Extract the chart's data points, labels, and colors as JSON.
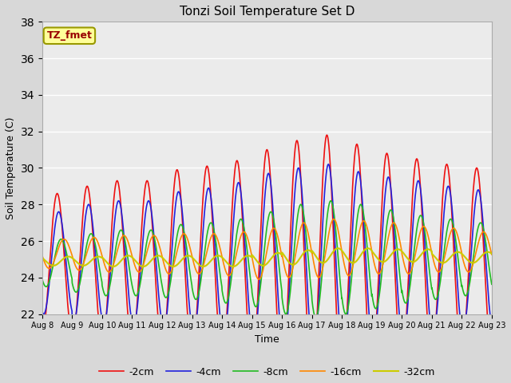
{
  "title": "Tonzi Soil Temperature Set D",
  "xlabel": "Time",
  "ylabel": "Soil Temperature (C)",
  "ylim": [
    22,
    38
  ],
  "n_days": 15,
  "points_per_day": 144,
  "base_temp": 24.8,
  "legend_labels": [
    "-2cm",
    "-4cm",
    "-8cm",
    "-16cm",
    "-32cm"
  ],
  "line_colors": [
    "#ee1111",
    "#2222dd",
    "#22bb22",
    "#ff8800",
    "#cccc00"
  ],
  "line_widths": [
    1.2,
    1.2,
    1.2,
    1.2,
    1.5
  ],
  "annotation_text": "TZ_fmet",
  "annotation_color": "#990000",
  "annotation_bg": "#ffff99",
  "annotation_border": "#999900",
  "bg_color": "#d8d8d8",
  "plot_bg": "#ebebeb",
  "xtick_labels": [
    "Aug 8",
    "Aug 9",
    "Aug 10",
    "Aug 11",
    "Aug 12",
    "Aug 13",
    "Aug 14",
    "Aug 15",
    "Aug 16",
    "Aug 17",
    "Aug 18",
    "Aug 19",
    "Aug 20",
    "Aug 21",
    "Aug 22",
    "Aug 23"
  ],
  "amplitude_2cm": [
    3.8,
    4.2,
    4.5,
    4.5,
    5.0,
    5.2,
    5.5,
    6.0,
    6.5,
    6.8,
    6.3,
    5.8,
    5.5,
    5.2,
    5.0
  ],
  "amplitude_4cm": [
    2.8,
    3.2,
    3.4,
    3.4,
    3.8,
    4.0,
    4.3,
    4.7,
    5.0,
    5.2,
    4.8,
    4.5,
    4.3,
    4.0,
    3.8
  ],
  "amplitude_8cm": [
    1.3,
    1.6,
    1.8,
    1.8,
    2.0,
    2.1,
    2.3,
    2.6,
    3.0,
    3.2,
    3.0,
    2.7,
    2.4,
    2.2,
    2.0
  ],
  "amplitude_16cm": [
    0.8,
    0.9,
    1.0,
    1.0,
    1.1,
    1.1,
    1.2,
    1.4,
    1.5,
    1.6,
    1.5,
    1.4,
    1.3,
    1.2,
    1.1
  ],
  "amplitude_32cm": [
    0.25,
    0.25,
    0.3,
    0.3,
    0.3,
    0.3,
    0.3,
    0.35,
    0.4,
    0.4,
    0.4,
    0.35,
    0.35,
    0.3,
    0.3
  ],
  "mean_2cm": [
    24.8,
    24.8,
    24.8,
    24.8,
    24.9,
    24.9,
    24.9,
    25.0,
    25.0,
    25.0,
    25.0,
    25.0,
    25.0,
    25.0,
    25.0
  ],
  "mean_4cm": [
    24.8,
    24.8,
    24.8,
    24.8,
    24.9,
    24.9,
    24.9,
    25.0,
    25.0,
    25.0,
    25.0,
    25.0,
    25.0,
    25.0,
    25.0
  ],
  "mean_8cm": [
    24.8,
    24.8,
    24.8,
    24.8,
    24.9,
    24.9,
    24.9,
    25.0,
    25.0,
    25.0,
    25.0,
    25.0,
    25.0,
    25.0,
    25.0
  ],
  "mean_16cm": [
    25.3,
    25.3,
    25.3,
    25.3,
    25.3,
    25.3,
    25.3,
    25.3,
    25.5,
    25.6,
    25.6,
    25.6,
    25.5,
    25.5,
    25.4
  ],
  "mean_32cm": [
    24.9,
    24.9,
    24.9,
    24.9,
    24.9,
    24.9,
    24.9,
    25.0,
    25.1,
    25.2,
    25.2,
    25.2,
    25.2,
    25.1,
    25.1
  ],
  "phase_2cm": 0.25,
  "phase_4cm": 0.3,
  "phase_8cm": 0.38,
  "phase_16cm": 0.48,
  "phase_32cm": 0.62
}
